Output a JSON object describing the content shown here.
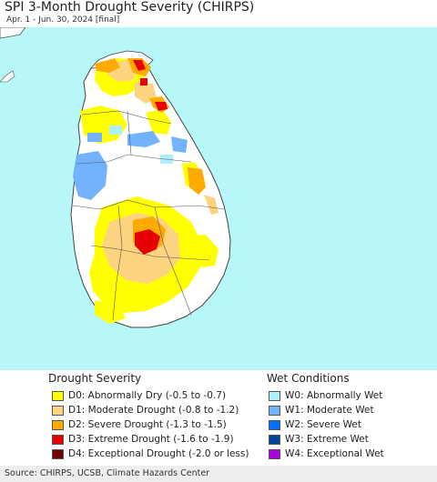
{
  "header": {
    "title": "SPI 3-Month Drought Severity (CHIRPS)",
    "subtitle": "Apr. 1 - Jun. 30, 2024 [final]"
  },
  "legend": {
    "drought": {
      "title": "Drought Severity",
      "items": [
        {
          "label": "D0: Abnormally Dry (-0.5 to -0.7)",
          "color": "#ffff00"
        },
        {
          "label": "D1: Moderate Drought (-0.8 to -1.2)",
          "color": "#fcd37f"
        },
        {
          "label": "D2: Severe Drought (-1.3 to -1.5)",
          "color": "#ffaa00"
        },
        {
          "label": "D3: Extreme Drought (-1.6 to -1.9)",
          "color": "#e60000"
        },
        {
          "label": "D4: Exceptional Drought (-2.0 or less)",
          "color": "#730000"
        }
      ]
    },
    "wet": {
      "title": "Wet Conditions",
      "items": [
        {
          "label": "W0: Abnormally Wet",
          "color": "#aaf0ff"
        },
        {
          "label": "W1: Moderate Wet",
          "color": "#73b2ff"
        },
        {
          "label": "W2: Severe Wet",
          "color": "#0070ff"
        },
        {
          "label": "W3: Extreme Wet",
          "color": "#0046a0"
        },
        {
          "label": "W4: Exceptional Wet",
          "color": "#aa00e6"
        }
      ]
    }
  },
  "colors": {
    "ocean": "#b8f7f7",
    "land": "#ffffff",
    "boundary": "#555555"
  },
  "footer": {
    "source": "Source: CHIRPS, UCSB, Climate Hazards Center"
  }
}
